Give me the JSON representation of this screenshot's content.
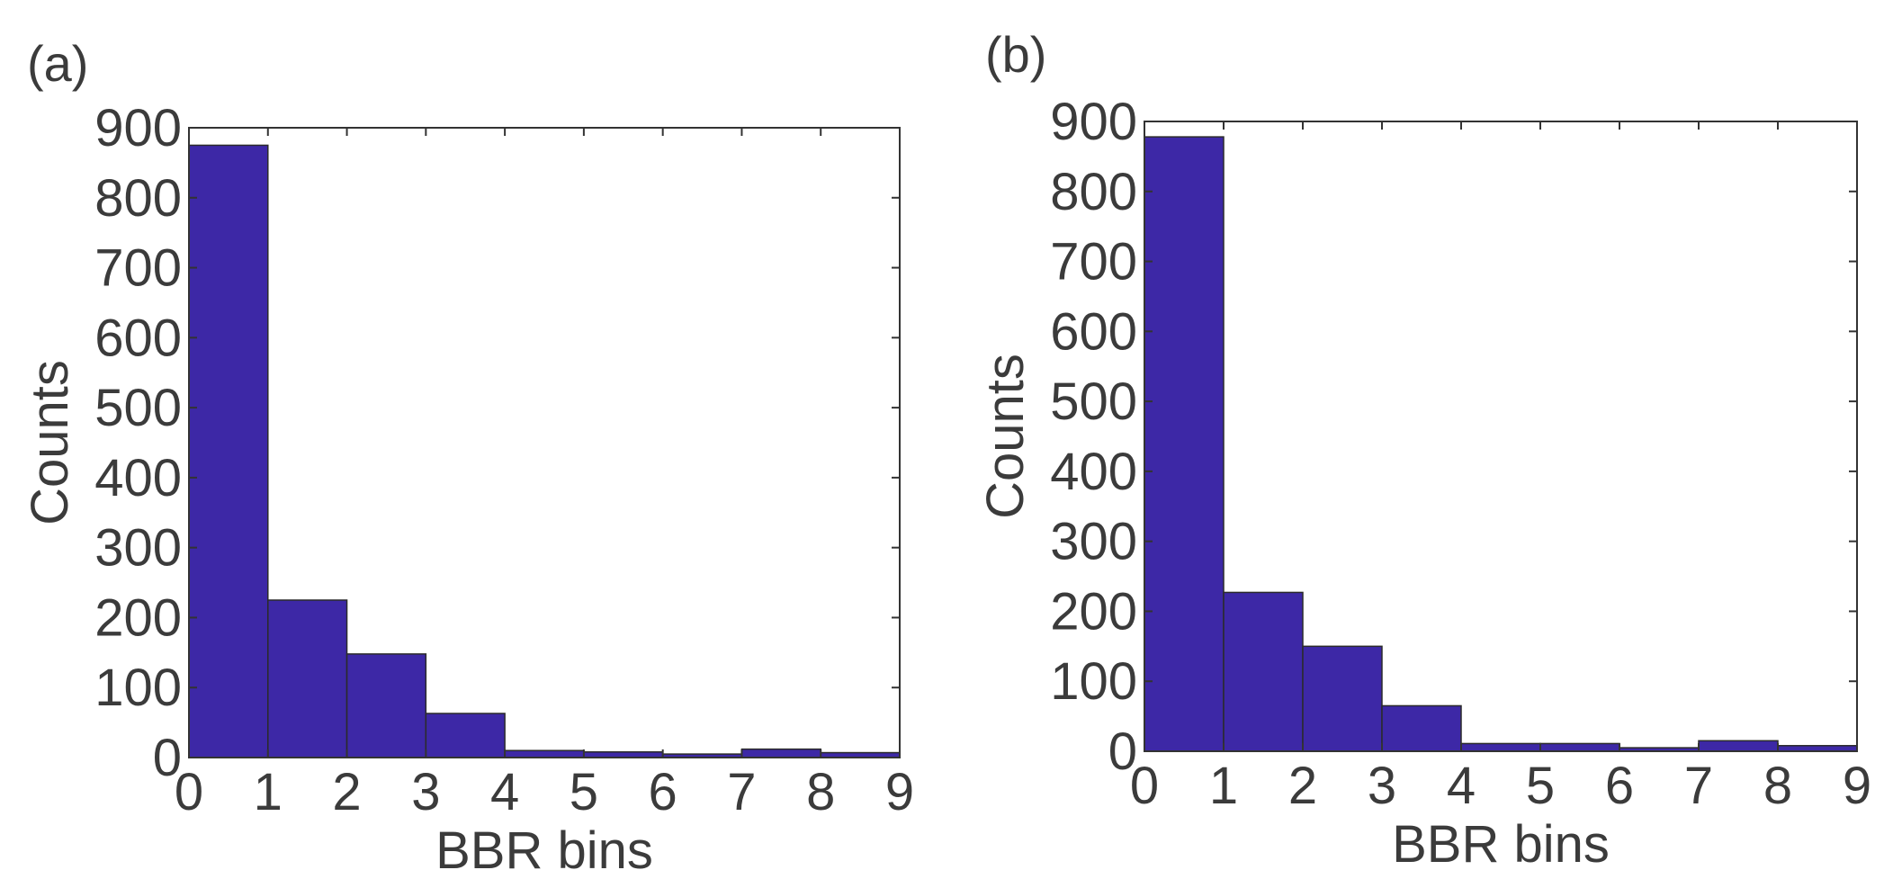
{
  "chart_data": [
    {
      "type": "bar",
      "panel_label": "(a)",
      "title": "",
      "xlabel": "BBR bins",
      "ylabel": "Counts",
      "xlim": [
        0,
        9
      ],
      "ylim": [
        0,
        900
      ],
      "xticks": [
        "0",
        "1",
        "2",
        "3",
        "4",
        "5",
        "6",
        "7",
        "8",
        "9"
      ],
      "yticks": [
        "0",
        "100",
        "200",
        "300",
        "400",
        "500",
        "600",
        "700",
        "800",
        "900"
      ],
      "bin_edges": [
        0,
        1,
        2,
        3,
        4,
        5,
        6,
        7,
        8,
        9
      ],
      "values": [
        875,
        225,
        148,
        63,
        10,
        8,
        5,
        12,
        7
      ],
      "bar_color": "#3d28a6",
      "grid": false
    },
    {
      "type": "bar",
      "panel_label": "(b)",
      "title": "",
      "xlabel": "BBR bins",
      "ylabel": "Counts",
      "xlim": [
        0,
        9
      ],
      "ylim": [
        0,
        900
      ],
      "xticks": [
        "0",
        "1",
        "2",
        "3",
        "4",
        "5",
        "6",
        "7",
        "8",
        "9"
      ],
      "yticks": [
        "0",
        "100",
        "200",
        "300",
        "400",
        "500",
        "600",
        "700",
        "800",
        "900"
      ],
      "bin_edges": [
        0,
        1,
        2,
        3,
        4,
        5,
        6,
        7,
        8,
        9
      ],
      "values": [
        878,
        227,
        150,
        65,
        11,
        11,
        5,
        15,
        8
      ],
      "bar_color": "#3d28a6",
      "grid": false
    }
  ]
}
